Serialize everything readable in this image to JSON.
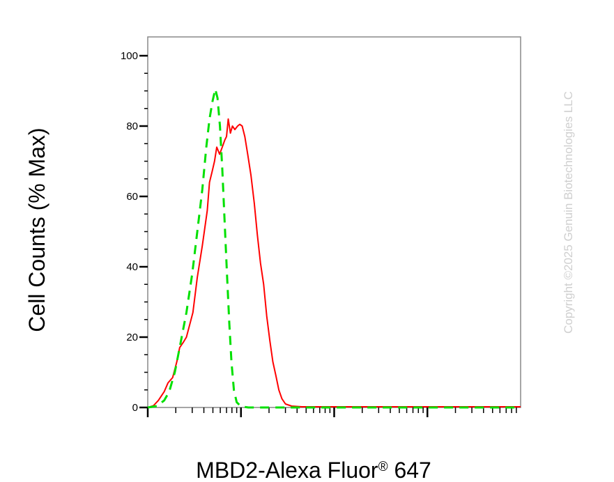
{
  "chart_data": {
    "type": "line",
    "xlabel_main": "MBD2-Alexa Fluor",
    "xlabel_sup": "®",
    "xlabel_tail": " 647",
    "ylabel": "Cell Counts (% Max)",
    "xscale": "log",
    "xlim": [
      1,
      10000
    ],
    "ylim": [
      0,
      105
    ],
    "yticks": [
      0,
      20,
      40,
      60,
      80,
      100
    ],
    "yticklabels": [
      "0",
      "20",
      "40",
      "60",
      "80",
      "100"
    ],
    "grid": false,
    "legend": "none",
    "watermark": "Copyright ©2025 Genuin Biotechnologies LLC",
    "series": [
      {
        "color": "#ff0000",
        "dash": "solid",
        "points": [
          [
            1.0,
            0
          ],
          [
            1.15,
            0.5
          ],
          [
            1.3,
            2
          ],
          [
            1.5,
            4.5
          ],
          [
            1.65,
            7
          ],
          [
            1.85,
            8.5
          ],
          [
            2.05,
            13
          ],
          [
            2.2,
            17
          ],
          [
            2.4,
            18.5
          ],
          [
            2.6,
            20
          ],
          [
            3.05,
            27
          ],
          [
            3.4,
            37
          ],
          [
            3.85,
            46
          ],
          [
            4.35,
            56
          ],
          [
            4.6,
            64
          ],
          [
            4.9,
            67
          ],
          [
            5.2,
            70
          ],
          [
            5.5,
            74
          ],
          [
            5.9,
            72
          ],
          [
            6.3,
            74
          ],
          [
            6.7,
            76
          ],
          [
            7.0,
            77
          ],
          [
            7.3,
            82
          ],
          [
            7.7,
            78
          ],
          [
            8.1,
            80
          ],
          [
            8.6,
            79
          ],
          [
            9.2,
            80
          ],
          [
            9.7,
            80.5
          ],
          [
            10.3,
            80
          ],
          [
            11.0,
            77
          ],
          [
            11.8,
            72
          ],
          [
            12.8,
            66
          ],
          [
            13.9,
            58
          ],
          [
            15.0,
            49
          ],
          [
            16.2,
            41
          ],
          [
            17.5,
            35
          ],
          [
            18.9,
            26
          ],
          [
            20.4,
            19
          ],
          [
            22.0,
            13
          ],
          [
            23.7,
            9
          ],
          [
            25.5,
            5
          ],
          [
            27.5,
            2.5
          ],
          [
            30,
            1
          ],
          [
            35,
            0.4
          ],
          [
            45,
            0.2
          ],
          [
            100,
            0.2
          ],
          [
            1000,
            0.2
          ],
          [
            10000,
            0.2
          ]
        ]
      },
      {
        "color": "#00e000",
        "dash": "dashed",
        "points": [
          [
            1.0,
            0
          ],
          [
            1.25,
            0.4
          ],
          [
            1.5,
            2
          ],
          [
            1.7,
            4.5
          ],
          [
            1.95,
            10
          ],
          [
            2.2,
            17
          ],
          [
            2.6,
            27
          ],
          [
            3.0,
            38
          ],
          [
            3.4,
            50
          ],
          [
            3.85,
            62
          ],
          [
            4.25,
            74
          ],
          [
            4.6,
            82
          ],
          [
            4.95,
            87
          ],
          [
            5.3,
            90.5
          ],
          [
            5.6,
            88
          ],
          [
            5.95,
            80
          ],
          [
            6.3,
            68
          ],
          [
            6.7,
            52
          ],
          [
            7.1,
            37
          ],
          [
            7.5,
            24
          ],
          [
            7.9,
            13
          ],
          [
            8.4,
            5
          ],
          [
            9.0,
            1.5
          ],
          [
            10,
            0.3
          ],
          [
            12,
            0
          ],
          [
            100,
            0
          ],
          [
            1000,
            0
          ],
          [
            10000,
            0
          ]
        ]
      }
    ]
  }
}
